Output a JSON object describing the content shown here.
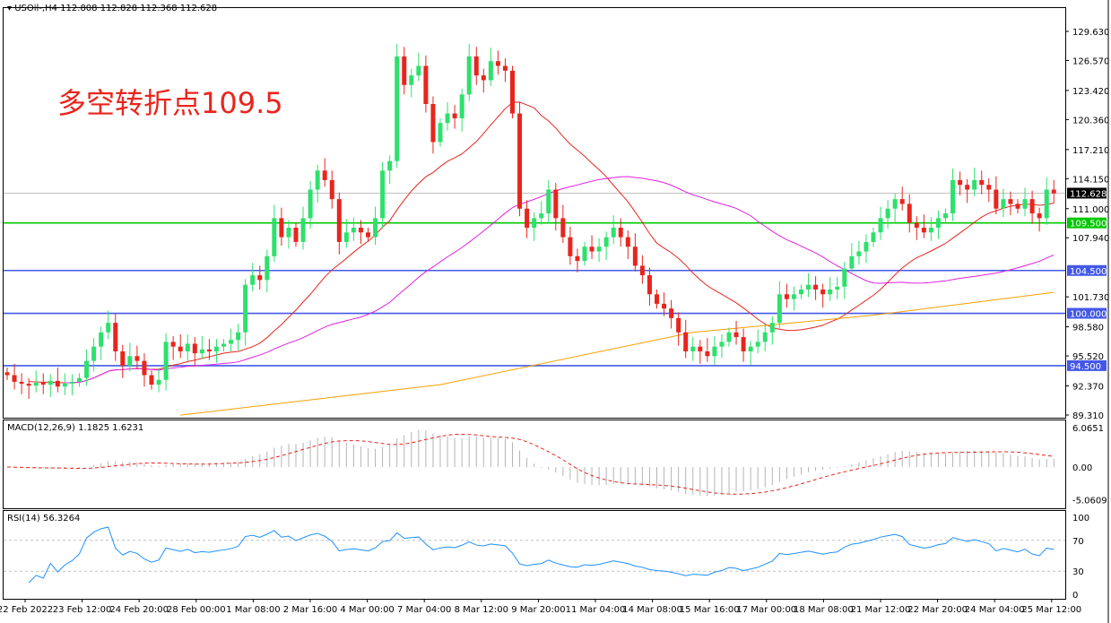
{
  "header": {
    "symbol": "USOil-,H4",
    "ohlc": "112.808 112.828 112.368 112.628"
  },
  "annotation": "多空转折点109.5",
  "macd_label": "MACD(12,26,9) 1.1825 1.6231",
  "rsi_label": "RSI(14) 56.3264",
  "colors": {
    "up": "#2ee06d",
    "down": "#e8251d",
    "ma_fast": "#e8251d",
    "ma_mid": "#e020e0",
    "ma_slow": "#f5a000",
    "level_green": "#00c800",
    "level_blue": "#4458e8",
    "rsi": "#1e90ff",
    "macd_hist": "#b4b4b4",
    "macd_signal": "#e8251d"
  },
  "chart_data": {
    "type": "candlestick",
    "ylim": [
      89.31,
      131.2
    ],
    "yticks": [
      "129.630",
      "126.570",
      "123.420",
      "120.360",
      "117.210",
      "114.150",
      "111.000",
      "107.940",
      "101.730",
      "98.580",
      "95.520",
      "92.370",
      "89.310"
    ],
    "xticks": [
      "22 Feb 2022",
      "23 Feb 12:00",
      "24 Feb 20:00",
      "28 Feb 00:00",
      "1 Mar 08:00",
      "2 Mar 16:00",
      "4 Mar 00:00",
      "7 Mar 04:00",
      "8 Mar 12:00",
      "9 Mar 20:00",
      "11 Mar 04:00",
      "14 Mar 08:00",
      "15 Mar 16:00",
      "17 Mar 00:00",
      "18 Mar 08:00",
      "21 Mar 12:00",
      "22 Mar 20:00",
      "24 Mar 04:00",
      "25 Mar 12:00"
    ],
    "closes": [
      93.5,
      92.8,
      92.6,
      92.4,
      92.7,
      92.5,
      92.9,
      92.3,
      92.6,
      92.8,
      93.2,
      95,
      96.5,
      98,
      99,
      96,
      94.5,
      95.5,
      95,
      93.5,
      92.5,
      93,
      97,
      96.5,
      96,
      96.8,
      95.8,
      96.2,
      96,
      96.5,
      96.8,
      97.2,
      98,
      103,
      104,
      103.5,
      106,
      110,
      108,
      109,
      107.5,
      110,
      113,
      115,
      114,
      112,
      107.5,
      108.5,
      109,
      108.5,
      108,
      110,
      115,
      116,
      127,
      124,
      125,
      126,
      122,
      118,
      120,
      121,
      120.5,
      123,
      127,
      125,
      124.5,
      126.5,
      126,
      125.5,
      121,
      111,
      109,
      110,
      110.5,
      113,
      110,
      108,
      106,
      105.5,
      107,
      106.5,
      107,
      108,
      109,
      108,
      107,
      105,
      104,
      102,
      101,
      100.5,
      99.5,
      98,
      96,
      96.5,
      96,
      95.5,
      96.5,
      97,
      98,
      97.5,
      96,
      96.5,
      97,
      98,
      99,
      102,
      101.5,
      102,
      102.5,
      103,
      102.5,
      102,
      102.5,
      102.8,
      104.7,
      106,
      106.5,
      107.5,
      108.5,
      110,
      111,
      112,
      111.5,
      109.5,
      109,
      108.5,
      109,
      110,
      110.5,
      114,
      113.5,
      113,
      114,
      113.5,
      113,
      111,
      112,
      111.5,
      111,
      112,
      110.5,
      110,
      113,
      112.6
    ],
    "ma_slow": [
      [
        24,
        89.3
      ],
      [
        60,
        92.5
      ],
      [
        95,
        98
      ],
      [
        120,
        99.8
      ],
      [
        145,
        102.2
      ]
    ],
    "current_price": "112.628",
    "levels": [
      {
        "value": 109.5,
        "label": "109.500",
        "color": "green"
      },
      {
        "value": 104.5,
        "label": "104.500",
        "color": "blue"
      },
      {
        "value": 100.0,
        "label": "100.000",
        "color": "blue"
      },
      {
        "value": 94.5,
        "label": "94.500",
        "color": "blue"
      }
    ],
    "macd": {
      "yticks": [
        "6.0651",
        "0.00",
        "-5.0609"
      ],
      "range": [
        -5.0609,
        6.0651
      ]
    },
    "rsi": {
      "yticks": [
        "100",
        "70",
        "30",
        "0"
      ],
      "levels": [
        70,
        30
      ]
    }
  }
}
